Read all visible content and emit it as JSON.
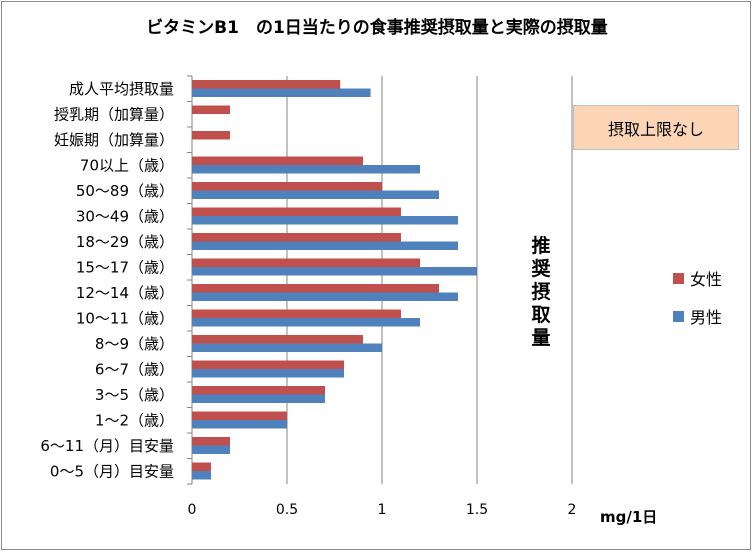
{
  "chart_data": {
    "type": "bar",
    "orientation": "horizontal",
    "title": "ビタミンB1　の1日当たりの食事推奨摂取量と実際の摂取量",
    "xlabel": "mg/1日",
    "ylabel": "推奨摂取量",
    "xlim": [
      0,
      2
    ],
    "xticks": [
      "0",
      "0.5",
      "1",
      "1.5",
      "2"
    ],
    "xtick_values": [
      0,
      0.5,
      1,
      1.5,
      2
    ],
    "grid": true,
    "legend_position": "right",
    "categories": [
      "成人平均摂取量",
      "授乳期（加算量）",
      "妊娠期（加算量）",
      "70以上（歳）",
      "50～89（歳）",
      "30～49（歳）",
      "18～29（歳）",
      "15～17（歳）",
      "12～14（歳）",
      "10～11（歳）",
      "8～9（歳）",
      "6～7（歳）",
      "3～5（歳）",
      "1～2（歳）",
      "6～11（月）目安量",
      "0～5（月）目安量"
    ],
    "series": [
      {
        "name": "女性",
        "color": "#c0504d",
        "values": [
          0.78,
          0.2,
          0.2,
          0.9,
          1.0,
          1.1,
          1.1,
          1.2,
          1.3,
          1.1,
          0.9,
          0.8,
          0.7,
          0.5,
          0.2,
          0.1
        ]
      },
      {
        "name": "男性",
        "color": "#4f81bd",
        "values": [
          0.94,
          null,
          null,
          1.2,
          1.3,
          1.4,
          1.4,
          1.5,
          1.4,
          1.2,
          1.0,
          0.8,
          0.7,
          0.5,
          0.2,
          0.1
        ]
      }
    ],
    "annotation": "摂取上限なし"
  }
}
